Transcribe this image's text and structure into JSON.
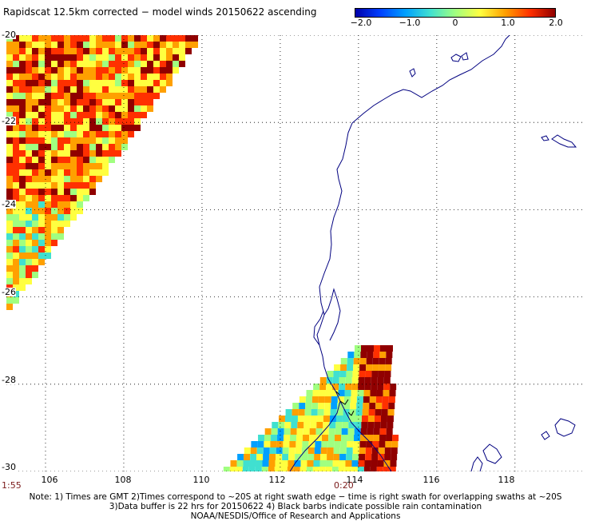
{
  "title": "Rapidscat 12.5km corrected − model winds 20150622 ascending",
  "colorbar": {
    "ticks": [
      "−2.0",
      "−1.0",
      "0",
      "1.0",
      "2.0"
    ],
    "colors": [
      "#0000aa",
      "#0040ff",
      "#00a0ff",
      "#40e0d0",
      "#a0ff80",
      "#ffff40",
      "#ffa000",
      "#ff3000",
      "#900000"
    ]
  },
  "axes": {
    "x_ticks": [
      "106",
      "108",
      "110",
      "112",
      "114",
      "116",
      "118"
    ],
    "y_ticks": [
      "-20",
      "-22",
      "-24",
      "-26",
      "-28",
      "-30"
    ],
    "lon_range": [
      105.0,
      119.8
    ],
    "lat_range": [
      -30,
      -20
    ]
  },
  "time_labels": {
    "left": "1:55",
    "right": "0:20"
  },
  "notes": {
    "line1": "Note: 1) Times are GMT 2)Times correspond to ~20S at right swath edge − time is right swath for overlapping swaths at ~20S",
    "line2": "3)Data buffer is 22 hrs for 20150622 4) Black barbs indicate possible rain contamination",
    "line3": "NOAA/NESDIS/Office of Research and Applications"
  },
  "colors": {
    "coast": "#000080",
    "grid": "#000000",
    "time": "#7a1a1a"
  }
}
